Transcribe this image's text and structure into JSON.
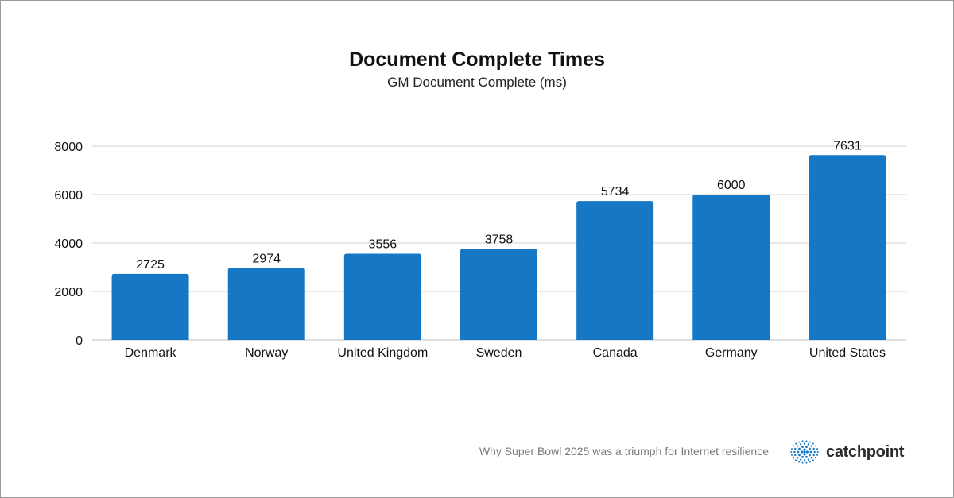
{
  "chart_data": {
    "type": "bar",
    "title": "Document Complete Times",
    "subtitle": "GM Document Complete (ms)",
    "categories": [
      "Denmark",
      "Norway",
      "United Kingdom",
      "Sweden",
      "Canada",
      "Germany",
      "United States"
    ],
    "values": [
      2725,
      2974,
      3556,
      3758,
      5734,
      6000,
      7631
    ],
    "data_labels": [
      "2725",
      "2974",
      "3556",
      "3758",
      "5734",
      "6000",
      "7631"
    ],
    "yticks": [
      "0",
      "2000",
      "4000",
      "6000",
      "8000"
    ],
    "ylim": [
      0,
      8000
    ],
    "xlabel": "",
    "ylabel": "",
    "grid": true,
    "bar_color": "#1677c5"
  },
  "footer": {
    "caption": "Why Super Bowl 2025 was a triumph for Internet resilience",
    "brand": "catchpoint",
    "logo_icon": "catchpoint-dots-icon"
  }
}
